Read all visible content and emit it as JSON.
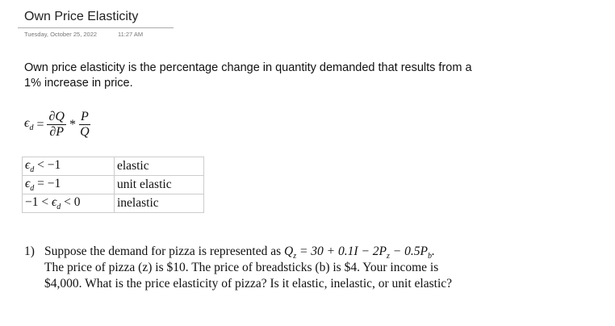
{
  "page": {
    "title": "Own Price Elasticity",
    "date": "Tuesday, October 25, 2022",
    "time": "11:27 AM"
  },
  "definition": {
    "line1": "Own price elasticity is the percentage change in quantity demanded that results from a",
    "line2": "1% increase in price."
  },
  "formula": {
    "lhs": "ϵ",
    "lhs_sub": "d",
    "eq": "=",
    "num1": "∂Q",
    "den1": "∂P",
    "times": "*",
    "num2": "P",
    "den2": "Q"
  },
  "table": [
    {
      "condition": "ϵd < −1",
      "condition_main": "ϵ",
      "condition_sub": "d",
      "condition_rest": " < −1",
      "condition_pre": "",
      "label": "elastic"
    },
    {
      "condition": "ϵd = −1",
      "condition_main": "ϵ",
      "condition_sub": "d",
      "condition_rest": " = −1",
      "condition_pre": "",
      "label": "unit elastic"
    },
    {
      "condition": "−1 < ϵd < 0",
      "condition_main": "ϵ",
      "condition_sub": "d",
      "condition_rest": " < 0",
      "condition_pre": "−1 < ",
      "label": "inelastic"
    }
  ],
  "question": {
    "number": "1)",
    "line1": "Suppose the demand for pizza is represented as ",
    "equation": "Qz = 30 + 0.1I − 2Pz − 0.5Pb.",
    "line2": "The price of pizza (z) is $10. The price of breadsticks (b) is $4. Your income is",
    "line3": "$4,000. What is the price elasticity of pizza? Is it elastic, inelastic, or unit elastic?"
  }
}
